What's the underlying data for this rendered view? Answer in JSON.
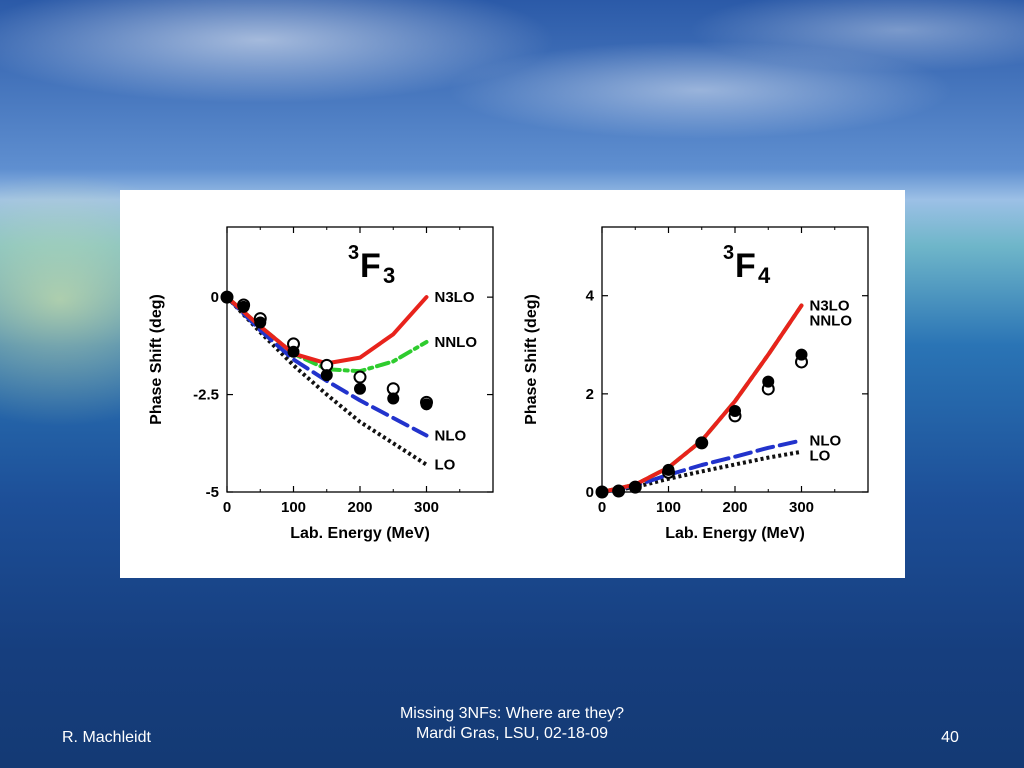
{
  "footer": {
    "author": "R. Machleidt",
    "title_line1": "Missing 3NFs: Where are they?",
    "title_line2": "Mardi Gras, LSU, 02-18-09",
    "page_number": "40"
  },
  "colors": {
    "N3LO": "#e8231c",
    "NNLO": "#2ecc2e",
    "NLO": "#2233cc",
    "LO": "#111111"
  },
  "chart_data": [
    {
      "type": "line",
      "title_sup": "3",
      "title_main": "F",
      "title_sub": "3",
      "xlabel": "Lab. Energy (MeV)",
      "ylabel": "Phase Shift (deg)",
      "xlim": [
        0,
        400
      ],
      "ylim": [
        -5,
        1.8
      ],
      "xticks": [
        0,
        100,
        200,
        300
      ],
      "yticks": [
        0,
        -2.5,
        -5
      ],
      "ytick_labels": [
        "0",
        "-2.5",
        "-5"
      ],
      "series": [
        {
          "name": "N3LO",
          "style": "solid",
          "color": "#e8231c",
          "x": [
            0,
            50,
            100,
            150,
            200,
            250,
            300
          ],
          "y": [
            0,
            -0.75,
            -1.45,
            -1.7,
            -1.55,
            -0.95,
            0.0
          ]
        },
        {
          "name": "NNLO",
          "style": "dashdot",
          "color": "#2ecc2e",
          "x": [
            0,
            50,
            100,
            150,
            200,
            250,
            300
          ],
          "y": [
            0,
            -0.75,
            -1.45,
            -1.85,
            -1.9,
            -1.65,
            -1.15
          ]
        },
        {
          "name": "NLO",
          "style": "dash",
          "color": "#2233cc",
          "x": [
            0,
            50,
            100,
            150,
            200,
            250,
            300
          ],
          "y": [
            0,
            -0.85,
            -1.6,
            -2.15,
            -2.65,
            -3.1,
            -3.55
          ]
        },
        {
          "name": "LO",
          "style": "dot",
          "color": "#111111",
          "x": [
            0,
            50,
            100,
            150,
            200,
            250,
            300
          ],
          "y": [
            0,
            -0.9,
            -1.75,
            -2.5,
            -3.2,
            -3.75,
            -4.3
          ]
        }
      ],
      "data_filled": {
        "x": [
          0,
          25,
          50,
          100,
          150,
          200,
          250,
          300
        ],
        "y": [
          0,
          -0.25,
          -0.65,
          -1.4,
          -2.0,
          -2.35,
          -2.6,
          -2.75
        ]
      },
      "data_open": {
        "x": [
          0,
          25,
          50,
          100,
          150,
          200,
          250,
          300
        ],
        "y": [
          0,
          -0.2,
          -0.55,
          -1.2,
          -1.75,
          -2.05,
          -2.35,
          -2.7
        ]
      }
    },
    {
      "type": "line",
      "title_sup": "3",
      "title_main": "F",
      "title_sub": "4",
      "xlabel": "Lab. Energy (MeV)",
      "ylabel": "Phase Shift (deg)",
      "xlim": [
        0,
        400
      ],
      "ylim": [
        0,
        5.4
      ],
      "xticks": [
        0,
        100,
        200,
        300
      ],
      "yticks": [
        0,
        2,
        4
      ],
      "ytick_labels": [
        "0",
        "2",
        "4"
      ],
      "series": [
        {
          "name": "N3LO",
          "style": "solid",
          "color": "#e8231c",
          "x": [
            0,
            50,
            100,
            150,
            200,
            250,
            300
          ],
          "y": [
            0,
            0.15,
            0.5,
            1.05,
            1.85,
            2.8,
            3.8
          ]
        },
        {
          "name": "NNLO",
          "style": "dashdot",
          "color": "#2ecc2e",
          "x": [
            0,
            50,
            100,
            150,
            200,
            250,
            300
          ],
          "y": [
            0,
            0.15,
            0.5,
            1.05,
            1.85,
            2.8,
            3.8
          ]
        },
        {
          "name": "NLO",
          "style": "dash",
          "color": "#2233cc",
          "x": [
            0,
            50,
            100,
            150,
            200,
            250,
            300
          ],
          "y": [
            0,
            0.13,
            0.35,
            0.55,
            0.72,
            0.9,
            1.05
          ]
        },
        {
          "name": "LO",
          "style": "dot",
          "color": "#111111",
          "x": [
            0,
            50,
            100,
            150,
            200,
            250,
            300
          ],
          "y": [
            0,
            0.1,
            0.27,
            0.42,
            0.56,
            0.7,
            0.82
          ]
        }
      ],
      "data_filled": {
        "x": [
          0,
          25,
          50,
          100,
          150,
          200,
          250,
          300
        ],
        "y": [
          0,
          0.02,
          0.1,
          0.45,
          1.0,
          1.65,
          2.25,
          2.8
        ]
      },
      "data_open": {
        "x": [
          0,
          25,
          50,
          100,
          150,
          200,
          250,
          300
        ],
        "y": [
          0,
          0.02,
          0.1,
          0.4,
          1.0,
          1.55,
          2.1,
          2.65
        ]
      }
    }
  ]
}
